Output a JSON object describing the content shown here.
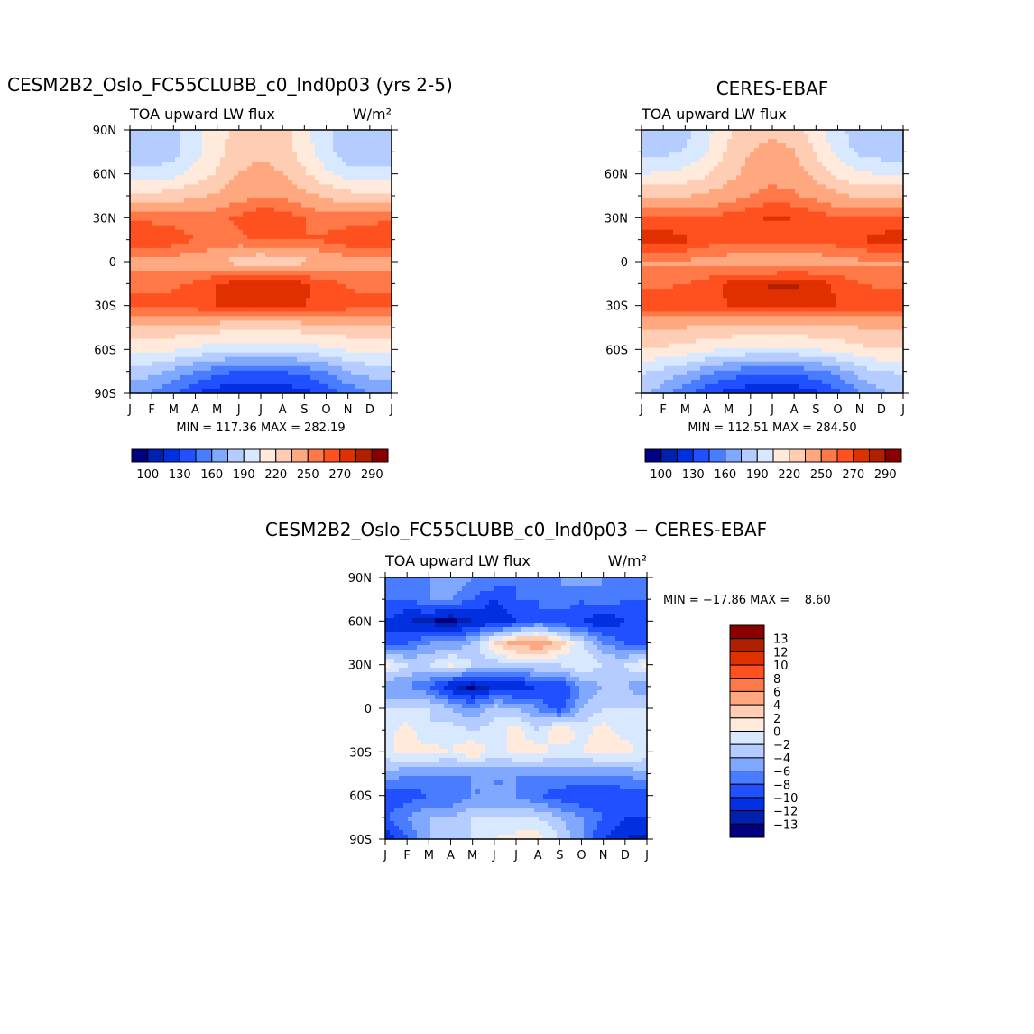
{
  "chart_data": [
    {
      "type": "heatmap",
      "title": "CESM2B2_Oslo_FC55CLUBB_c0_lnd0p03 (yrs 2-5)",
      "subtitle_left": "TOA upward LW flux",
      "subtitle_right": "W/m²",
      "stats": "MIN = 117.36 MAX = 282.19",
      "x_ticks": [
        "J",
        "F",
        "M",
        "A",
        "M",
        "J",
        "J",
        "A",
        "S",
        "O",
        "N",
        "D",
        "J"
      ],
      "y_ticks": [
        "90N",
        "60N",
        "30N",
        "0",
        "30S",
        "60S",
        "90S"
      ],
      "lat": [
        90,
        75,
        60,
        45,
        30,
        15,
        0,
        -15,
        -30,
        -45,
        -60,
        -75,
        -90
      ],
      "values": [
        [
          180,
          180,
          185,
          200,
          215,
          225,
          228,
          225,
          210,
          195,
          182,
          178,
          180
        ],
        [
          175,
          178,
          185,
          200,
          215,
          228,
          232,
          228,
          212,
          195,
          180,
          175,
          175
        ],
        [
          195,
          195,
          200,
          210,
          222,
          235,
          240,
          235,
          222,
          208,
          198,
          195,
          195
        ],
        [
          225,
          225,
          228,
          232,
          238,
          245,
          250,
          248,
          240,
          232,
          226,
          224,
          225
        ],
        [
          258,
          257,
          256,
          256,
          258,
          262,
          268,
          266,
          260,
          256,
          255,
          256,
          258
        ],
        [
          272,
          270,
          265,
          260,
          258,
          258,
          262,
          262,
          260,
          262,
          266,
          270,
          272
        ],
        [
          245,
          245,
          245,
          242,
          238,
          228,
          222,
          225,
          232,
          240,
          245,
          245,
          245
        ],
        [
          255,
          255,
          258,
          262,
          270,
          275,
          278,
          280,
          272,
          265,
          258,
          255,
          255
        ],
        [
          265,
          265,
          265,
          266,
          270,
          272,
          272,
          272,
          270,
          268,
          266,
          265,
          265
        ],
        [
          232,
          232,
          230,
          228,
          226,
          224,
          224,
          224,
          226,
          228,
          230,
          232,
          232
        ],
        [
          210,
          210,
          207,
          202,
          198,
          196,
          195,
          196,
          198,
          202,
          207,
          210,
          210
        ],
        [
          185,
          180,
          172,
          160,
          150,
          145,
          142,
          145,
          150,
          160,
          175,
          182,
          185
        ],
        [
          165,
          158,
          145,
          130,
          122,
          120,
          118,
          120,
          125,
          135,
          150,
          160,
          165
        ]
      ],
      "levels": [
        100,
        115,
        130,
        145,
        160,
        175,
        190,
        205,
        220,
        235,
        250,
        260,
        270,
        280,
        290
      ],
      "colorbar_labels": [
        "100",
        "130",
        "160",
        "190",
        "220",
        "250",
        "270",
        "290"
      ]
    },
    {
      "type": "heatmap",
      "title": "CERES-EBAF",
      "subtitle_left": "TOA upward LW flux",
      "subtitle_right": "",
      "stats": "MIN = 112.51 MAX = 284.50",
      "x_ticks": [
        "J",
        "F",
        "M",
        "A",
        "M",
        "J",
        "J",
        "A",
        "S",
        "O",
        "N",
        "D",
        "J"
      ],
      "y_ticks": [
        "60N",
        "30N",
        "0",
        "30S",
        "60S"
      ],
      "lat": [
        90,
        75,
        60,
        45,
        30,
        15,
        0,
        -15,
        -30,
        -45,
        -60,
        -75,
        -90
      ],
      "values": [
        [
          175,
          178,
          185,
          200,
          218,
          228,
          232,
          228,
          212,
          195,
          180,
          175,
          175
        ],
        [
          182,
          185,
          192,
          205,
          222,
          235,
          240,
          236,
          218,
          200,
          186,
          182,
          182
        ],
        [
          205,
          207,
          210,
          218,
          230,
          240,
          245,
          242,
          230,
          215,
          207,
          205,
          205
        ],
        [
          232,
          232,
          234,
          238,
          244,
          250,
          255,
          252,
          246,
          238,
          233,
          232,
          232
        ],
        [
          262,
          262,
          262,
          262,
          264,
          268,
          272,
          270,
          266,
          262,
          262,
          262,
          262
        ],
        [
          276,
          276,
          272,
          266,
          262,
          262,
          264,
          264,
          264,
          266,
          270,
          274,
          276
        ],
        [
          248,
          248,
          248,
          246,
          244,
          238,
          236,
          238,
          242,
          246,
          248,
          248,
          248
        ],
        [
          258,
          258,
          260,
          264,
          272,
          278,
          282,
          282,
          276,
          268,
          260,
          258,
          258
        ],
        [
          268,
          268,
          268,
          268,
          270,
          272,
          274,
          274,
          272,
          270,
          268,
          268,
          268
        ],
        [
          236,
          236,
          235,
          234,
          232,
          230,
          230,
          230,
          232,
          234,
          235,
          236,
          236
        ],
        [
          220,
          218,
          214,
          208,
          204,
          202,
          201,
          202,
          205,
          210,
          216,
          220,
          220
        ],
        [
          192,
          186,
          178,
          166,
          156,
          150,
          148,
          150,
          156,
          166,
          182,
          190,
          192
        ],
        [
          178,
          166,
          148,
          132,
          124,
          120,
          116,
          118,
          126,
          140,
          160,
          172,
          178
        ]
      ],
      "levels": [
        100,
        115,
        130,
        145,
        160,
        175,
        190,
        205,
        220,
        235,
        250,
        260,
        270,
        280,
        290
      ],
      "colorbar_labels": [
        "100",
        "130",
        "160",
        "190",
        "220",
        "250",
        "270",
        "290"
      ]
    },
    {
      "type": "heatmap",
      "title": "CESM2B2_Oslo_FC55CLUBB_c0_lnd0p03 − CERES-EBAF",
      "subtitle_left": "TOA upward LW flux",
      "subtitle_right": "W/m²",
      "stats": "MIN = −17.86 MAX =    8.60",
      "x_ticks": [
        "J",
        "F",
        "M",
        "A",
        "M",
        "J",
        "J",
        "A",
        "S",
        "O",
        "N",
        "D",
        "J"
      ],
      "y_ticks": [
        "90N",
        "60N",
        "30N",
        "0",
        "30S",
        "60S",
        "90S"
      ],
      "lat": [
        90,
        75,
        60,
        45,
        30,
        15,
        0,
        -15,
        -30,
        -45,
        -60,
        -75,
        -90
      ],
      "values": [
        [
          -6,
          -8,
          -6,
          -4,
          -6,
          -6,
          -8,
          -6,
          -6,
          -4,
          -6,
          -6,
          -6
        ],
        [
          -8,
          -8,
          -6,
          -6,
          -8,
          -10,
          -8,
          -8,
          -6,
          -8,
          -6,
          -8,
          -8
        ],
        [
          -10,
          -12,
          -13,
          -14,
          -12,
          -12,
          -10,
          -8,
          -10,
          -10,
          -12,
          -10,
          -10
        ],
        [
          -10,
          -8,
          -6,
          -6,
          -4,
          2,
          5,
          6,
          3,
          -2,
          -6,
          -8,
          -10
        ],
        [
          1,
          -2,
          -2,
          1,
          -2,
          -3,
          -2,
          -2,
          -2,
          0,
          -2,
          -2,
          1
        ],
        [
          -6,
          -6,
          -8,
          -12,
          -14,
          -12,
          -12,
          -10,
          -10,
          -6,
          -4,
          -4,
          -6
        ],
        [
          -2,
          -2,
          -2,
          -4,
          -6,
          -3,
          -4,
          -6,
          -10,
          -4,
          -2,
          -2,
          -2
        ],
        [
          -1,
          1,
          -2,
          -1,
          -2,
          -1,
          1,
          -2,
          2,
          -1,
          1,
          -1,
          -1
        ],
        [
          -1,
          1,
          1,
          0,
          2,
          -1,
          1,
          1,
          -1,
          0,
          1,
          1,
          -1
        ],
        [
          -4,
          -6,
          -6,
          -6,
          -6,
          -6,
          -6,
          -6,
          -6,
          -6,
          -6,
          -6,
          -4
        ],
        [
          -10,
          -9,
          -8,
          -8,
          -6,
          -6,
          -6,
          -8,
          -9,
          -10,
          -10,
          -9,
          -10
        ],
        [
          -8,
          -6,
          -4,
          -4,
          -2,
          -2,
          -2,
          -2,
          -4,
          -6,
          -8,
          -10,
          -10
        ],
        [
          -12,
          -8,
          -4,
          -2,
          -2,
          0,
          1,
          1,
          -2,
          -6,
          -10,
          -12,
          -13
        ]
      ],
      "levels": [
        -13,
        -12,
        -10,
        -8,
        -6,
        -4,
        -2,
        0,
        2,
        4,
        6,
        8,
        10,
        12,
        13
      ],
      "colorbar_labels": [
        "13",
        "12",
        "10",
        "8",
        "6",
        "4",
        "2",
        "0",
        "−2",
        "−4",
        "−6",
        "−8",
        "−10",
        "−12",
        "−13"
      ]
    }
  ],
  "colors": [
    "#000080",
    "#0020b0",
    "#0030e0",
    "#2050ff",
    "#4a7cff",
    "#80a8ff",
    "#b4ccff",
    "#d8e8ff",
    "#ffeadb",
    "#ffccb4",
    "#ffa880",
    "#ff7848",
    "#ff5020",
    "#e03000",
    "#b02000",
    "#8a0000"
  ]
}
